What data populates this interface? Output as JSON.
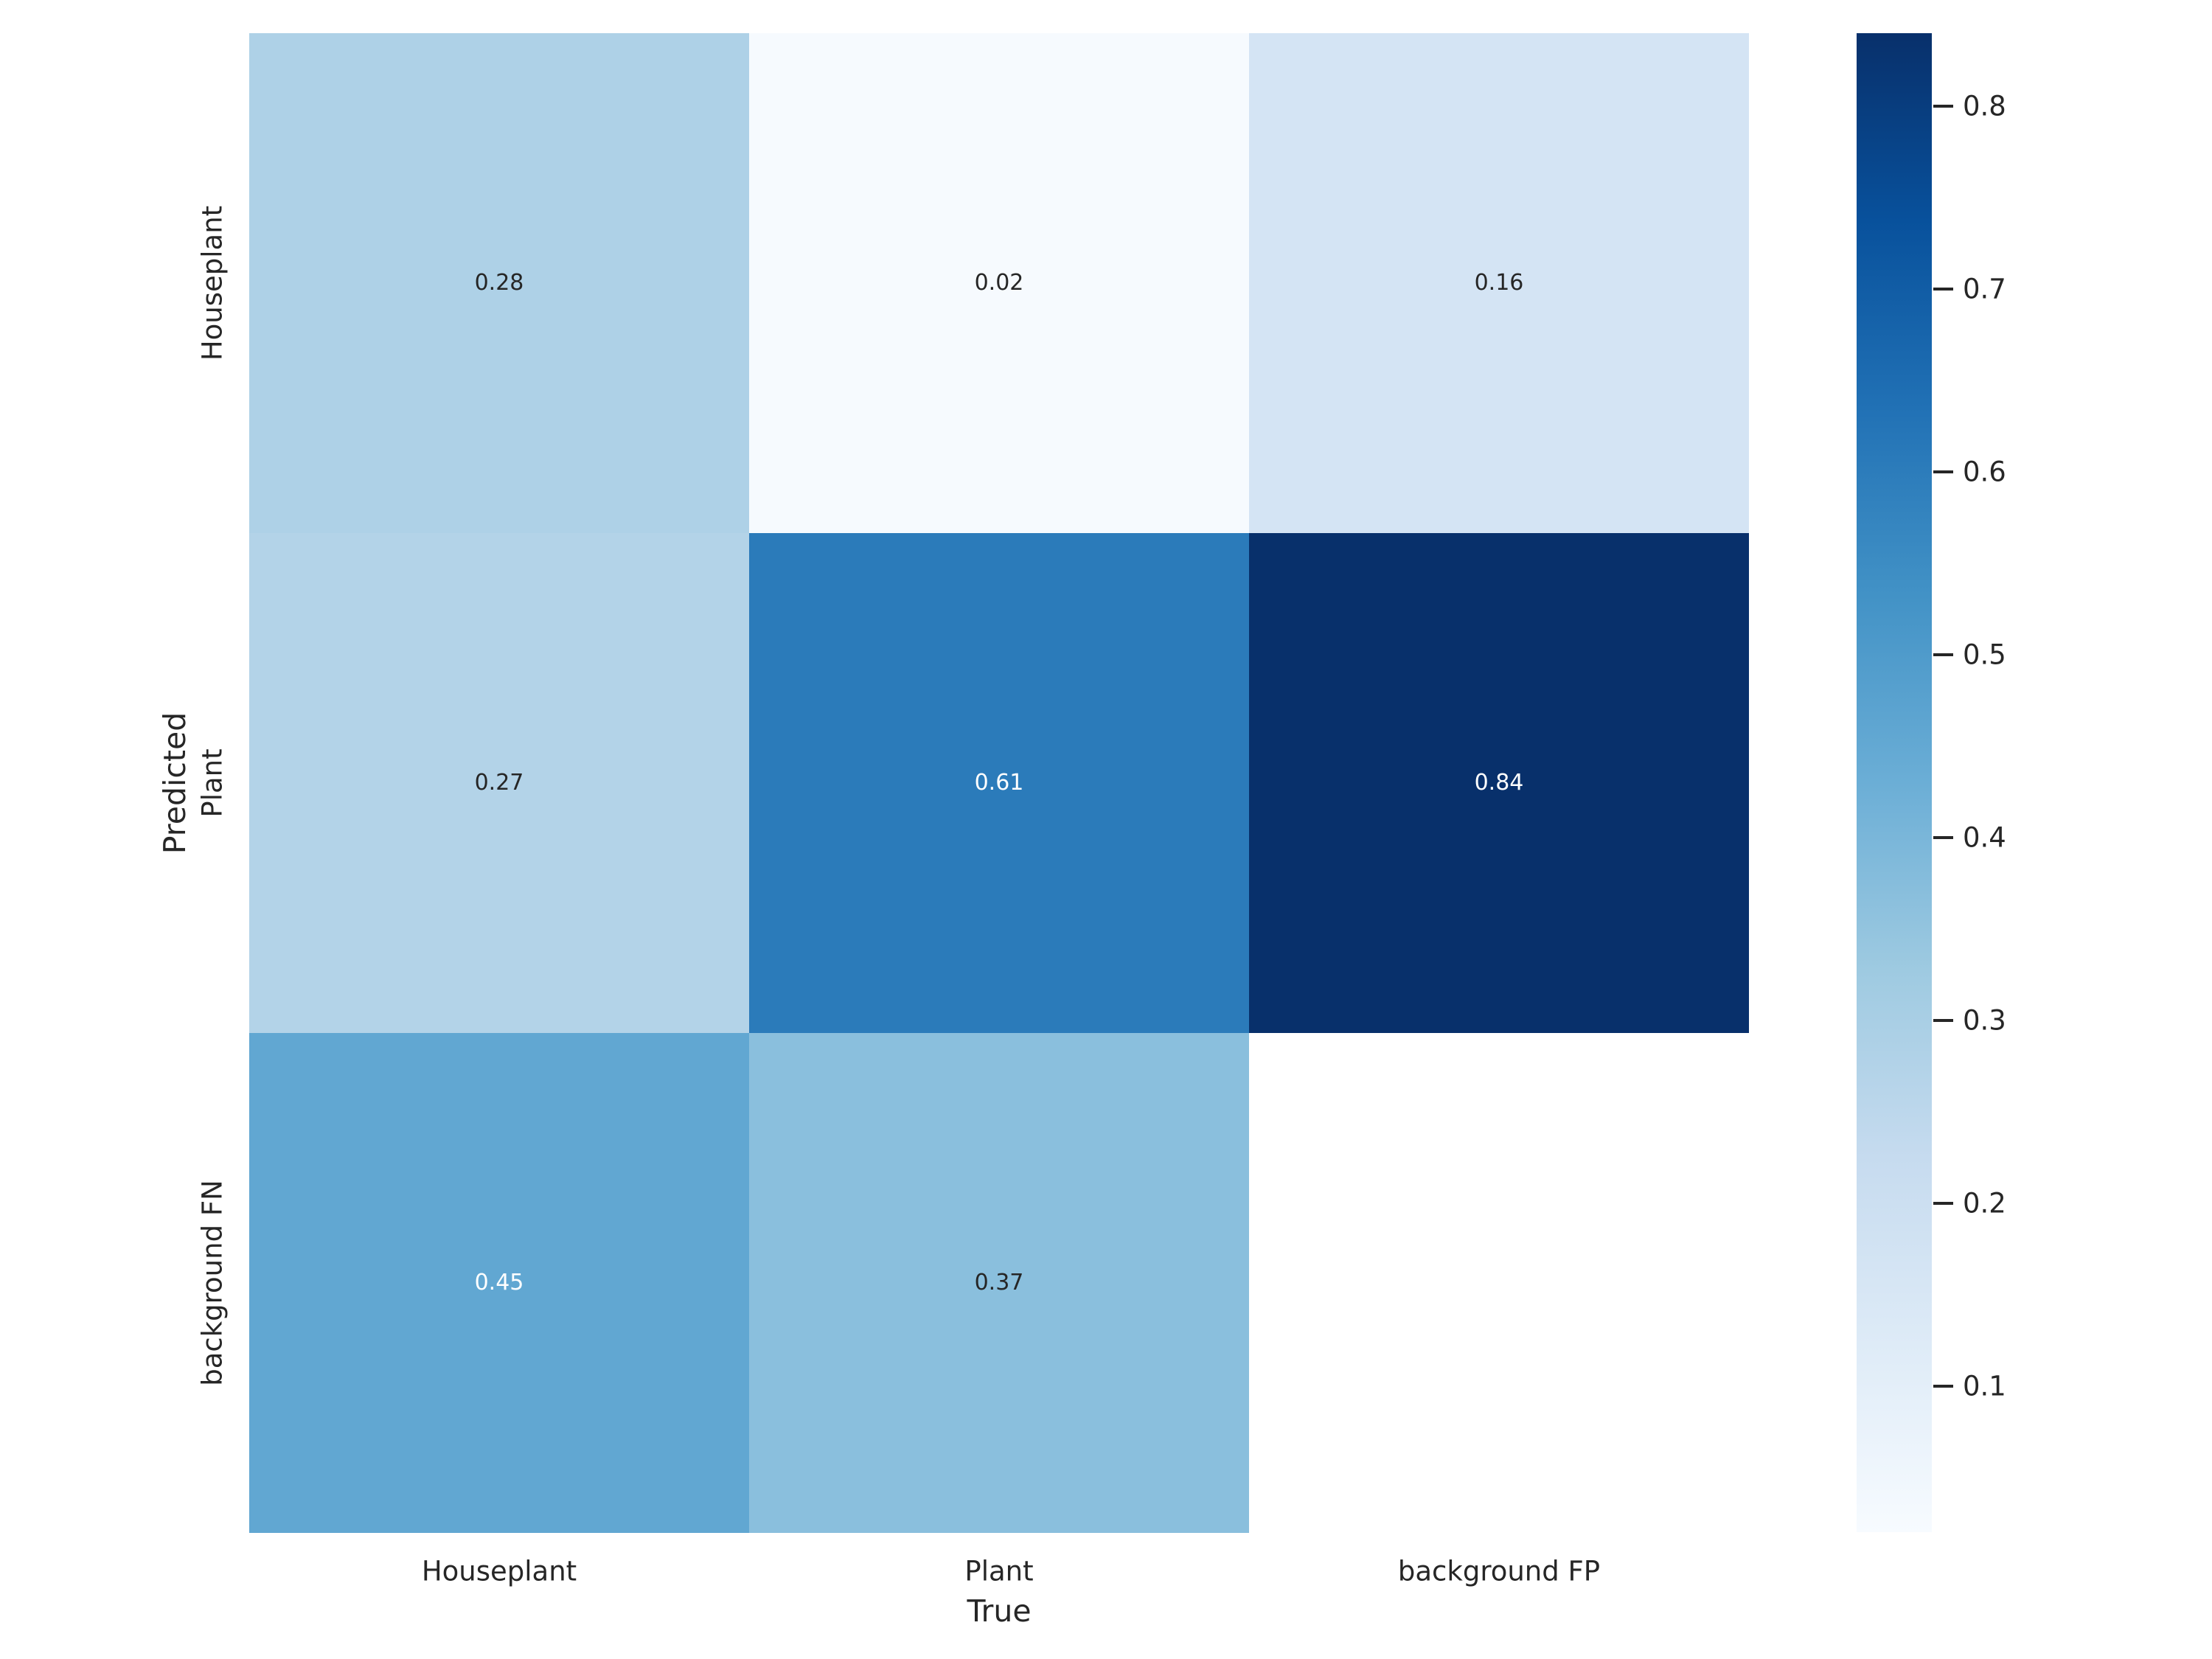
{
  "figure": {
    "background_color": "#ffffff",
    "text_color": "#262626"
  },
  "chart_data": {
    "type": "heatmap",
    "title": "",
    "xlabel": "True",
    "ylabel": "Predicted",
    "x_categories": [
      "Houseplant",
      "Plant",
      "background FP"
    ],
    "y_categories": [
      "Houseplant",
      "Plant",
      "background FN"
    ],
    "values": [
      [
        0.28,
        0.02,
        0.16
      ],
      [
        0.27,
        0.61,
        0.84
      ],
      [
        0.45,
        0.37,
        null
      ]
    ],
    "colormap": "Blues",
    "vmin": 0.02,
    "vmax": 0.84,
    "grid": false,
    "legend_position": "colorbar-right",
    "colorbar_tick_values": [
      0.8,
      0.7,
      0.6,
      0.5,
      0.4,
      0.3,
      0.2,
      0.1
    ],
    "colorbar_tick_labels": [
      "0.8",
      "0.7",
      "0.6",
      "0.5",
      "0.4",
      "0.3",
      "0.2",
      "0.1"
    ],
    "cells": [
      {
        "row": 0,
        "col": 0,
        "label": "0.28",
        "bg": "#aed1e7",
        "fg": "#262626"
      },
      {
        "row": 0,
        "col": 1,
        "label": "0.02",
        "bg": "#f6fafe",
        "fg": "#262626"
      },
      {
        "row": 0,
        "col": 2,
        "label": "0.16",
        "bg": "#d4e4f4",
        "fg": "#262626"
      },
      {
        "row": 1,
        "col": 0,
        "label": "0.27",
        "bg": "#b3d3e8",
        "fg": "#262626"
      },
      {
        "row": 1,
        "col": 1,
        "label": "0.61",
        "bg": "#2b7bba",
        "fg": "#ffffff"
      },
      {
        "row": 1,
        "col": 2,
        "label": "0.84",
        "bg": "#08306b",
        "fg": "#ffffff"
      },
      {
        "row": 2,
        "col": 0,
        "label": "0.45",
        "bg": "#61a7d2",
        "fg": "#ffffff"
      },
      {
        "row": 2,
        "col": 1,
        "label": "0.37",
        "bg": "#8abfdd",
        "fg": "#262626"
      },
      {
        "row": 2,
        "col": 2,
        "label": "",
        "bg": "#ffffff",
        "fg": "#262626"
      }
    ]
  },
  "colorbar": {
    "accent_dark": "#08306b",
    "accent_light": "#f7fbff",
    "gradient_stops_top_to_bottom": [
      "#08306b",
      "#08519c",
      "#2171b5",
      "#4292c6",
      "#6baed6",
      "#9ecae1",
      "#c6dbef",
      "#deebf7",
      "#f7fbff"
    ]
  }
}
